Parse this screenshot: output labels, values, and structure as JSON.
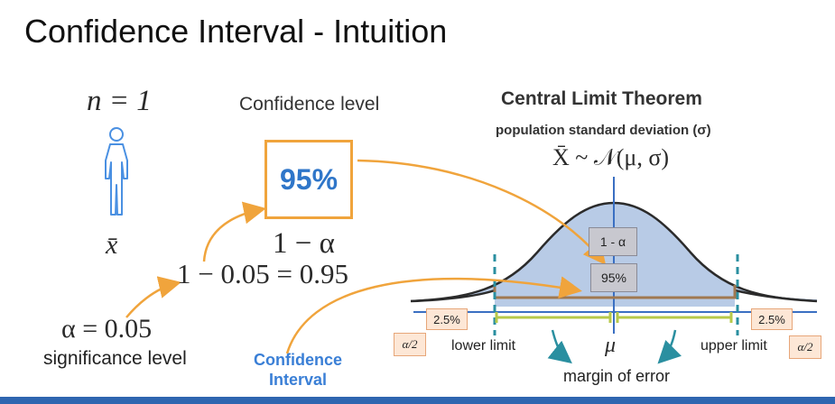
{
  "title": "Confidence Interval - Intuition",
  "n_equation": "n = 1",
  "confidence_level_label": "Confidence level",
  "confidence_value": "95%",
  "clt_title": "Central Limit Theorem",
  "population_sd_label": "population standard deviation (σ)",
  "distribution_formula": "X̄ ~ 𝒩(μ, σ)",
  "sample_mean_symbol": "x̄",
  "one_minus_alpha": "1 − α",
  "calculation": "1 − 0.05 = 0.95",
  "alpha_equation": "α = 0.05",
  "significance_level_label": "significance level",
  "confidence_interval_label": "Confidence Interval",
  "curve_labels": {
    "one_minus_alpha_box": "1 - α",
    "center_percent": "95%",
    "left_tail_percent": "2.5%",
    "right_tail_percent": "2.5%",
    "alpha_half_left": "α/2",
    "alpha_half_right": "α/2",
    "lower_limit": "lower limit",
    "upper_limit": "upper limit",
    "mu": "μ",
    "margin_of_error": "margin of error"
  },
  "colors": {
    "accent_orange": "#f0a43c",
    "curve_fill": "#b8cbe6",
    "axis_blue": "#3a6fc2",
    "limit_teal": "#2a8fa0",
    "interval_green": "#b7c94a",
    "bracket_brown": "#a07850",
    "label_blue": "#3a7fd6",
    "bottom_bar": "#2e66b0"
  },
  "icons": {
    "person": "person-outline-icon"
  }
}
